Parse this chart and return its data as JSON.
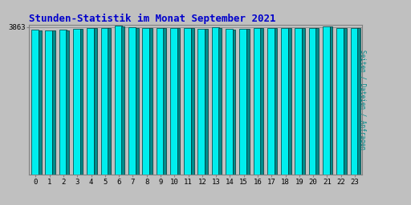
{
  "title": "Stunden-Statistik im Monat September 2021",
  "ylabel_right": "Seiten / Dateien / Anfragen",
  "ytick_label": "3863",
  "ytick_val": 3863,
  "hours": [
    0,
    1,
    2,
    3,
    4,
    5,
    6,
    7,
    8,
    9,
    10,
    11,
    12,
    13,
    14,
    15,
    16,
    17,
    18,
    19,
    20,
    21,
    22,
    23
  ],
  "values_cyan": [
    3790,
    3785,
    3790,
    3820,
    3848,
    3845,
    3900,
    3858,
    3848,
    3842,
    3840,
    3842,
    3828,
    3855,
    3818,
    3825,
    3842,
    3848,
    3848,
    3845,
    3842,
    3888,
    3850,
    3845
  ],
  "values_teal": [
    3775,
    3770,
    3775,
    3810,
    3838,
    3835,
    3888,
    3848,
    3838,
    3832,
    3830,
    3832,
    3818,
    3845,
    3808,
    3815,
    3832,
    3838,
    3838,
    3835,
    3832,
    3875,
    3840,
    3835
  ],
  "bar_color_cyan": "#00EEEE",
  "bar_color_teal": "#008B8B",
  "bar_edge": "#005555",
  "background_color": "#C0C0C0",
  "title_color": "#0000CC",
  "ylabel_color": "#008B8B",
  "ylim_min": 0,
  "ylim_max": 3930,
  "title_fontsize": 9,
  "axis_fontsize": 6.5
}
